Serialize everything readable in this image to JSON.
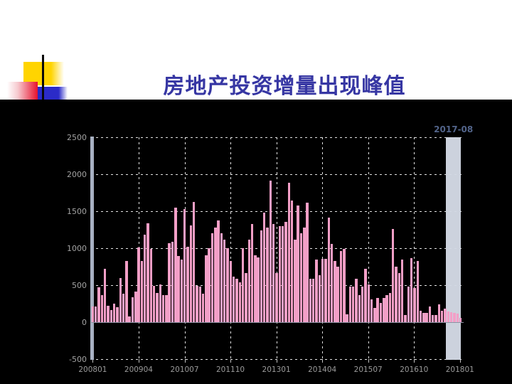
{
  "slide": {
    "title": "房地产投资增量出现峰值"
  },
  "chart": {
    "annotation_label": "2017-08",
    "y_tick_labels": [
      "2500",
      "2000",
      "1500",
      "1000",
      "500",
      "0",
      "-500"
    ],
    "x_tick_labels": [
      "200801",
      "200904",
      "201007",
      "201110",
      "201301",
      "201404",
      "201507",
      "201610",
      "201801"
    ],
    "colors": {
      "panel_background": "#000000",
      "bar": "#F39FC7",
      "highlight_band": "#D3D9E4",
      "y_axis_bar": "#A8B1C3",
      "gridline": "#E2E2E2",
      "axis_label": "#9B9B9B",
      "annotation": "#52648A",
      "title": "#3636A3"
    }
  },
  "chart_data": {
    "type": "bar",
    "title": "房地产投资增量出现峰值",
    "xlabel": "",
    "ylabel": "",
    "x_start": "2008-01",
    "x_end": "2018-01",
    "frequency": "monthly",
    "ylim": [
      -500,
      2500
    ],
    "grid": true,
    "highlight_band_from": "2017-09",
    "highlight_band_label": "2017-08",
    "values": [
      210,
      210,
      470,
      370,
      720,
      225,
      165,
      250,
      205,
      600,
      385,
      830,
      80,
      335,
      415,
      1010,
      830,
      1180,
      1340,
      990,
      495,
      400,
      510,
      370,
      365,
      1070,
      1090,
      1550,
      895,
      850,
      1530,
      1020,
      1310,
      1625,
      495,
      480,
      390,
      910,
      1005,
      1200,
      1280,
      1375,
      1200,
      1120,
      1005,
      830,
      620,
      590,
      545,
      1005,
      670,
      1120,
      1325,
      910,
      880,
      1245,
      1485,
      1280,
      1915,
      1325,
      670,
      1295,
      1295,
      1360,
      1885,
      1645,
      1120,
      1580,
      1200,
      1280,
      1615,
      590,
      590,
      845,
      640,
      860,
      860,
      1415,
      1055,
      830,
      750,
      960,
      990,
      110,
      480,
      480,
      590,
      365,
      480,
      720,
      510,
      310,
      200,
      330,
      260,
      330,
      365,
      400,
      1260,
      750,
      670,
      845,
      95,
      480,
      865,
      465,
      830,
      160,
      130,
      130,
      210,
      95,
      95,
      240,
      160,
      190,
      150,
      135,
      125,
      115,
      60
    ]
  }
}
